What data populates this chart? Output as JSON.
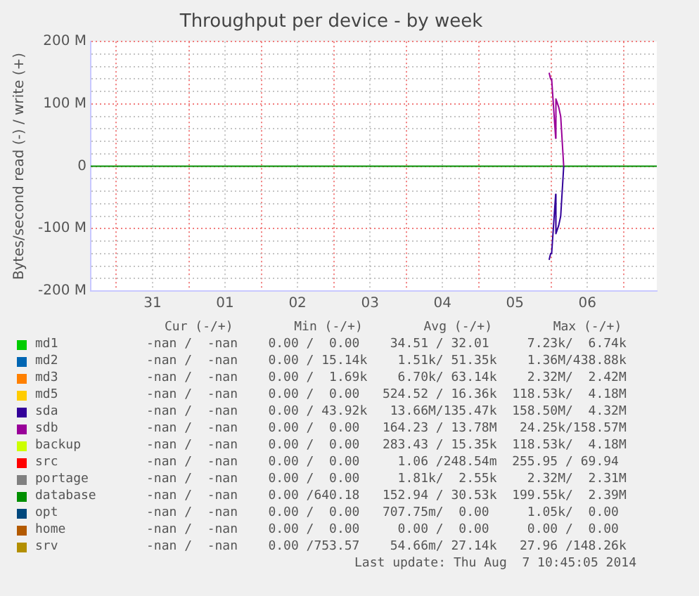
{
  "chart_data": {
    "type": "line",
    "title": "Throughput per device - by week",
    "ylabel": "Bytes/second read (-) / write (+)",
    "x": [
      "2014-07-30T15:30",
      "2014-08-07T11:00"
    ],
    "xlim": [
      "2014-07-30T15:30",
      "2014-08-07T11:00"
    ],
    "xticks": [
      {
        "value": "2014-07-31T00:00",
        "label": null
      },
      {
        "value": "2014-07-31T12:00",
        "label": "31"
      },
      {
        "value": "2014-08-01T00:00",
        "label": null
      },
      {
        "value": "2014-08-01T12:00",
        "label": "01"
      },
      {
        "value": "2014-08-02T00:00",
        "label": null
      },
      {
        "value": "2014-08-02T12:00",
        "label": "02"
      },
      {
        "value": "2014-08-03T00:00",
        "label": null
      },
      {
        "value": "2014-08-03T12:00",
        "label": "03"
      },
      {
        "value": "2014-08-04T00:00",
        "label": null
      },
      {
        "value": "2014-08-04T12:00",
        "label": "04"
      },
      {
        "value": "2014-08-05T00:00",
        "label": null
      },
      {
        "value": "2014-08-05T12:00",
        "label": "05"
      },
      {
        "value": "2014-08-06T00:00",
        "label": null
      },
      {
        "value": "2014-08-06T12:00",
        "label": "06"
      },
      {
        "value": "2014-08-07T00:00",
        "label": null
      }
    ],
    "ylim": [
      -200,
      200
    ],
    "yticks": [
      {
        "value": -200,
        "label": "-200 M"
      },
      {
        "value": -180,
        "label": null
      },
      {
        "value": -160,
        "label": null
      },
      {
        "value": -140,
        "label": null
      },
      {
        "value": -120,
        "label": null
      },
      {
        "value": -100,
        "label": "-100 M"
      },
      {
        "value": -80,
        "label": null
      },
      {
        "value": -60,
        "label": null
      },
      {
        "value": -40,
        "label": null
      },
      {
        "value": -20,
        "label": null
      },
      0,
      {
        "value": 20,
        "label": null
      },
      {
        "value": 40,
        "label": null
      },
      {
        "value": 60,
        "label": null
      },
      {
        "value": 80,
        "label": null
      },
      {
        "value": 100,
        "label": "100 M"
      },
      {
        "value": 120,
        "label": null
      },
      {
        "value": 140,
        "label": null
      },
      {
        "value": 160,
        "label": null
      },
      {
        "value": 180,
        "label": null
      },
      {
        "value": 200,
        "label": "200 M"
      }
    ],
    "grid": true,
    "legend": "bottom",
    "marker": "none",
    "line_style": "solid",
    "series": [
      {
        "name": "md1",
        "color": "#00cc00",
        "values": [
          null,
          null
        ]
      },
      {
        "name": "md2",
        "color": "#0066b3",
        "values": [
          null,
          null
        ]
      },
      {
        "name": "md3",
        "color": "#ff8000",
        "values": [
          null,
          null
        ]
      },
      {
        "name": "md5",
        "color": "#ffcc00",
        "values": [
          null,
          null
        ]
      },
      {
        "name": "sda",
        "color": "#330099",
        "x": [
          "2014-08-05T23:20",
          "2014-08-05T23:50",
          "2014-08-06T00:10",
          "2014-08-06T01:30",
          "2014-08-06T01:35",
          "2014-08-06T02:30",
          "2014-08-06T03:10",
          "2014-08-06T04:10"
        ],
        "values": [
          -150,
          -140,
          -140,
          -45,
          -108,
          -95,
          -80,
          0
        ]
      },
      {
        "name": "sdb",
        "color": "#990099",
        "x": [
          "2014-08-05T23:20",
          "2014-08-05T23:50",
          "2014-08-06T00:10",
          "2014-08-06T01:30",
          "2014-08-06T01:35",
          "2014-08-06T02:30",
          "2014-08-06T03:10",
          "2014-08-06T04:10"
        ],
        "values": [
          150,
          140,
          140,
          45,
          108,
          95,
          80,
          0
        ]
      },
      {
        "name": "backup",
        "color": "#ccff00",
        "values": [
          null,
          null
        ]
      },
      {
        "name": "src",
        "color": "#ff0000",
        "values": [
          null,
          null
        ]
      },
      {
        "name": "portage",
        "color": "#808080",
        "values": [
          null,
          null
        ]
      },
      {
        "name": "database",
        "color": "#008f00",
        "values": [
          0,
          0
        ]
      },
      {
        "name": "opt",
        "color": "#00487d",
        "values": [
          null,
          null
        ]
      },
      {
        "name": "home",
        "color": "#b35a00",
        "values": [
          null,
          null
        ]
      },
      {
        "name": "srv",
        "color": "#b38f00",
        "values": [
          null,
          null
        ]
      }
    ],
    "annotations": [
      "Cur (-/+)        Min (-/+)        Avg (-/+)        Max (-/+)",
      "-nan /  -nan    0.00 /  0.00    34.51 / 32.01     7.23k/  6.74k",
      "-nan /  -nan    0.00 / 15.14k    1.51k/ 51.35k    1.36M/438.88k",
      "-nan /  -nan    0.00 /  1.69k    6.70k/ 63.14k    2.32M/  2.42M",
      "-nan /  -nan    0.00 /  0.00   524.52 / 16.36k  118.53k/  4.18M",
      "-nan /  -nan    0.00 / 43.92k   13.66M/135.47k  158.50M/  4.32M",
      "-nan /  -nan    0.00 /  0.00   164.23 / 13.78M   24.25k/158.57M",
      "-nan /  -nan    0.00 /  0.00   283.43 / 15.35k  118.53k/  4.18M",
      "-nan /  -nan    0.00 /  0.00     1.06 /248.54m  255.95 / 69.94",
      "-nan /  -nan    0.00 /  0.00     1.81k/  2.55k    2.32M/  2.31M",
      "-nan /  -nan    0.00 /640.18   152.94 / 30.53k  199.55k/  2.39M",
      "-nan /  -nan    0.00 /  0.00   707.75m/  0.00     1.05k/  0.00",
      "-nan /  -nan    0.00 /  0.00     0.00 /  0.00     0.00 /  0.00",
      "-nan /  -nan    0.00 /753.57    54.66m/ 27.14k   27.96 /148.26k",
      "Last update: Thu Aug  7 10:45:05 2014"
    ]
  }
}
